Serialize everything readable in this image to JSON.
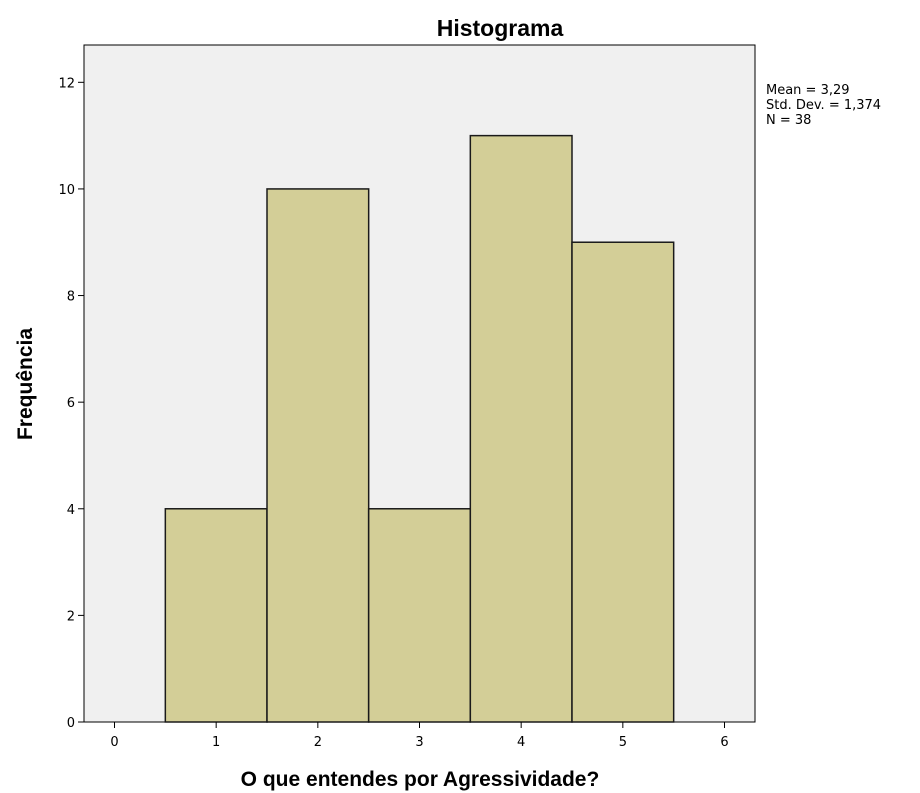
{
  "chart_data": {
    "type": "bar",
    "title": "Histograma",
    "xlabel": "O que entendes por Agressividade?",
    "ylabel": "Frequência",
    "x_ticks": [
      0,
      1,
      2,
      3,
      4,
      5,
      6
    ],
    "y_ticks": [
      0,
      2,
      4,
      6,
      8,
      10,
      12
    ],
    "xlim": [
      -0.3,
      6.3
    ],
    "ylim": [
      0,
      12.7
    ],
    "bin_width": 1,
    "categories": [
      1,
      2,
      3,
      4,
      5
    ],
    "values": [
      4,
      10,
      4,
      11,
      9
    ],
    "grid": false,
    "colors": {
      "plot_background": "#f0f0f0",
      "bar_fill": "#d3ce97",
      "bar_stroke": "#1a1a1a"
    },
    "stats": [
      "Mean = 3,29",
      "Std. Dev. = 1,374",
      "N = 38"
    ]
  }
}
